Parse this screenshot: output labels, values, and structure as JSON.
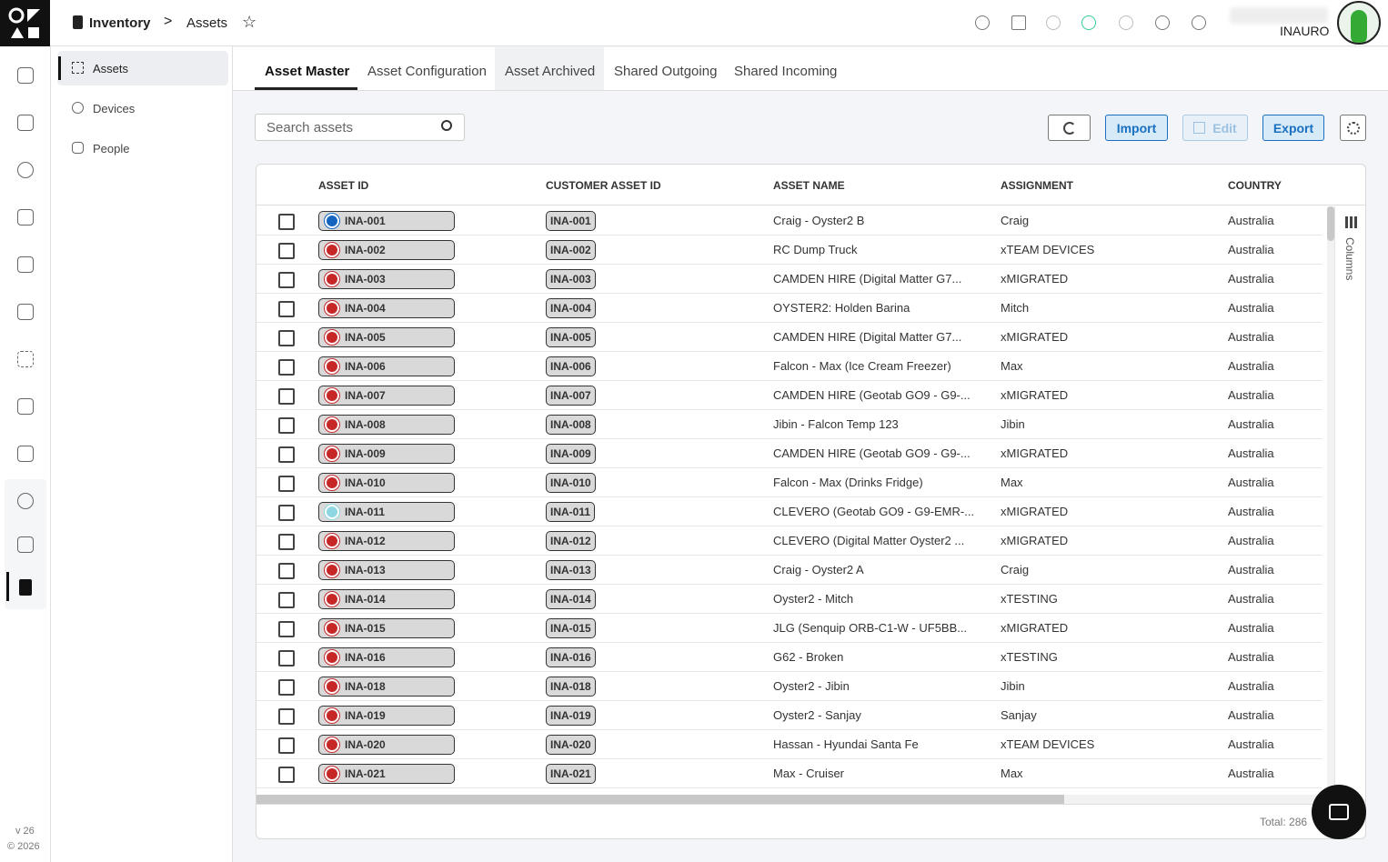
{
  "header": {
    "breadcrumb": [
      "Inventory",
      "Assets"
    ],
    "user": "INAURO"
  },
  "sidebar": {
    "version": "v 26",
    "copyright": "© 2026"
  },
  "subnav": [
    "Assets",
    "Devices",
    "People"
  ],
  "tabs": [
    "Asset Master",
    "Asset Configuration",
    "Asset Archived",
    "Shared Outgoing",
    "Shared Incoming"
  ],
  "toolbar": {
    "search_placeholder": "Search assets",
    "buttons": [
      "Import",
      "Edit",
      "Export"
    ]
  },
  "table": {
    "columns": [
      "ASSET ID",
      "CUSTOMER ASSET ID",
      "ASSET NAME",
      "ASSIGNMENT",
      "COUNTRY"
    ],
    "rows": [
      [
        "INA-001",
        "INA-001",
        "Craig - Oyster2 B",
        "Craig",
        "Australia"
      ],
      [
        "INA-002",
        "INA-002",
        "RC Dump Truck",
        "xTEAM DEVICES",
        "Australia"
      ],
      [
        "INA-003",
        "INA-003",
        "CAMDEN HIRE (Digital Matter G7...",
        "xMIGRATED",
        "Australia"
      ],
      [
        "INA-004",
        "INA-004",
        "OYSTER2: Holden Barina",
        "Mitch",
        "Australia"
      ],
      [
        "INA-005",
        "INA-005",
        "CAMDEN HIRE (Digital Matter G7...",
        "xMIGRATED",
        "Australia"
      ],
      [
        "INA-006",
        "INA-006",
        "Falcon - Max (Ice Cream Freezer)",
        "Max",
        "Australia"
      ],
      [
        "INA-007",
        "INA-007",
        "CAMDEN HIRE (Geotab GO9 - G9-...",
        "xMIGRATED",
        "Australia"
      ],
      [
        "INA-008",
        "INA-008",
        "Jibin - Falcon Temp 123",
        "Jibin",
        "Australia"
      ],
      [
        "INA-009",
        "INA-009",
        "CAMDEN HIRE (Geotab GO9 - G9-...",
        "xMIGRATED",
        "Australia"
      ],
      [
        "INA-010",
        "INA-010",
        "Falcon - Max (Drinks Fridge)",
        "Max",
        "Australia"
      ],
      [
        "INA-011",
        "INA-011",
        "CLEVERO (Geotab GO9 - G9-EMR-...",
        "xMIGRATED",
        "Australia"
      ],
      [
        "INA-012",
        "INA-012",
        "CLEVERO (Digital Matter Oyster2 ...",
        "xMIGRATED",
        "Australia"
      ],
      [
        "INA-013",
        "INA-013",
        "Craig - Oyster2 A",
        "Craig",
        "Australia"
      ],
      [
        "INA-014",
        "INA-014",
        "Oyster2 - Mitch",
        "xTESTING",
        "Australia"
      ],
      [
        "INA-015",
        "INA-015",
        "JLG (Senquip ORB-C1-W - UF5BB...",
        "xMIGRATED",
        "Australia"
      ],
      [
        "INA-016",
        "INA-016",
        "G62 - Broken",
        "xTESTING",
        "Australia"
      ],
      [
        "INA-018",
        "INA-018",
        "Oyster2 - Jibin",
        "Jibin",
        "Australia"
      ],
      [
        "INA-019",
        "INA-019",
        "Oyster2 - Sanjay",
        "Sanjay",
        "Australia"
      ],
      [
        "INA-020",
        "INA-020",
        "Hassan - Hyundai Santa Fe",
        "xTEAM DEVICES",
        "Australia"
      ],
      [
        "INA-021",
        "INA-021",
        "Max - Cruiser",
        "Max",
        "Australia"
      ]
    ],
    "columns_panel": "Columns",
    "total": "Total: 286"
  }
}
